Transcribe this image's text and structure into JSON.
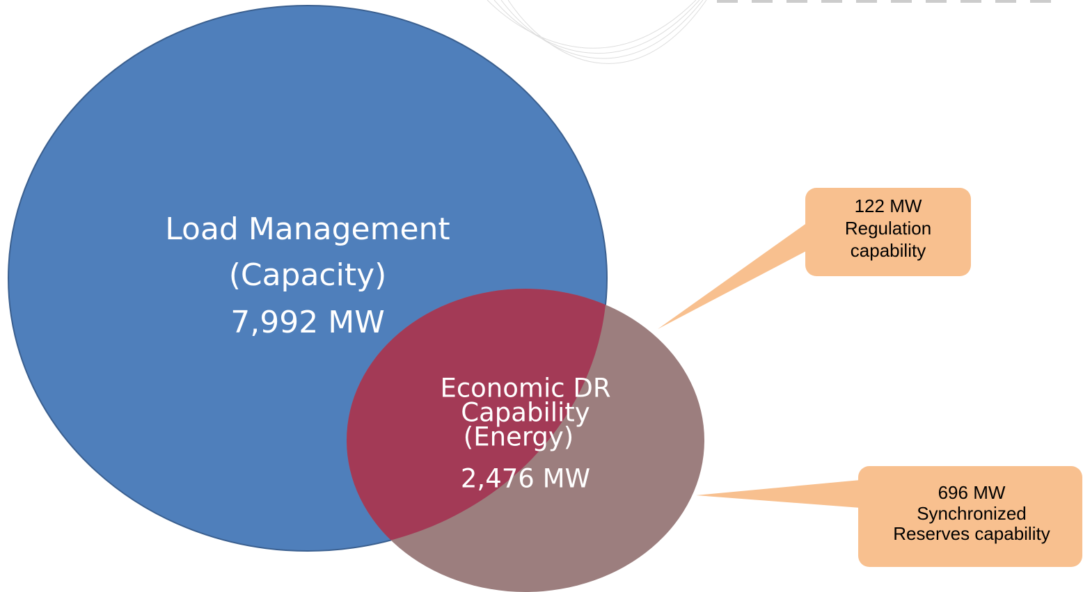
{
  "load_management": {
    "lines": [
      "Load Management",
      "(Capacity)",
      "7,992 MW"
    ]
  },
  "economic_dr": {
    "lines": [
      "Economic DR",
      "Capability",
      "(Energy)",
      "2,476 MW"
    ]
  },
  "callouts": [
    {
      "lines": [
        "122 MW",
        "Regulation",
        "capability"
      ]
    },
    {
      "lines": [
        "696 MW",
        "Synchronized",
        "Reserves capability"
      ]
    }
  ]
}
